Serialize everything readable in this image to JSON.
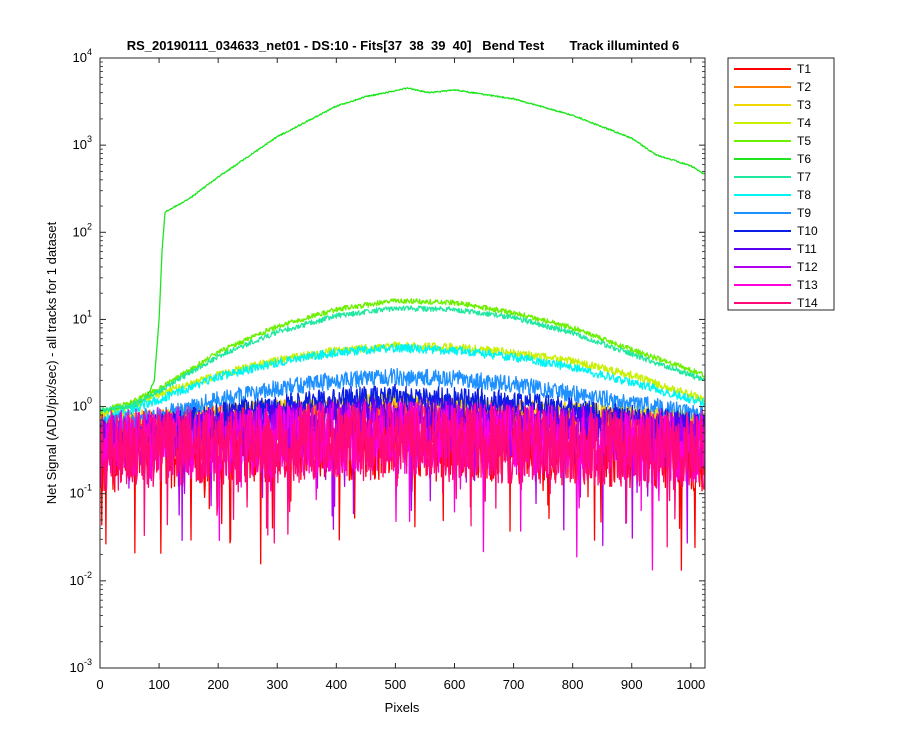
{
  "chart_data": {
    "type": "line",
    "title": "RS_20190111_034633_net01 - DS:10 - Fits[37  38  39  40]   Bend Test       Track illuminted 6",
    "xlabel": "Pixels",
    "ylabel": "Net Signal (ADU/pix/sec) - all tracks for 1 dataset",
    "xlim": [
      0,
      1024
    ],
    "ylim": [
      0.001,
      10000
    ],
    "yscale": "log",
    "x_ticks": [
      0,
      100,
      200,
      300,
      400,
      500,
      600,
      700,
      800,
      900,
      1000
    ],
    "y_tick_exponents": [
      -3,
      -2,
      -1,
      0,
      1,
      2,
      3,
      4
    ],
    "grid": false,
    "legend_position": "outside-right",
    "series": [
      {
        "name": "T1",
        "color": "#ff0000",
        "points": [
          [
            0,
            0.3
          ],
          [
            200,
            0.35
          ],
          [
            500,
            0.4
          ],
          [
            800,
            0.35
          ],
          [
            1024,
            0.3
          ]
        ]
      },
      {
        "name": "T2",
        "color": "#ff8000",
        "points": [
          [
            0,
            0.6
          ],
          [
            200,
            0.8
          ],
          [
            500,
            1.0
          ],
          [
            800,
            0.8
          ],
          [
            1024,
            0.6
          ]
        ]
      },
      {
        "name": "T3",
        "color": "#f2d600",
        "points": [
          [
            0,
            0.7
          ],
          [
            100,
            0.8
          ],
          [
            200,
            0.9
          ],
          [
            300,
            1.0
          ],
          [
            400,
            1.1
          ],
          [
            500,
            1.2
          ],
          [
            600,
            1.1
          ],
          [
            700,
            1.0
          ],
          [
            800,
            0.95
          ],
          [
            900,
            0.85
          ],
          [
            1024,
            0.75
          ]
        ]
      },
      {
        "name": "T4",
        "color": "#c8f000",
        "points": [
          [
            0,
            0.8
          ],
          [
            50,
            1.0
          ],
          [
            100,
            1.4
          ],
          [
            200,
            2.3
          ],
          [
            300,
            3.4
          ],
          [
            400,
            4.4
          ],
          [
            500,
            5.0
          ],
          [
            600,
            4.8
          ],
          [
            700,
            4.2
          ],
          [
            800,
            3.3
          ],
          [
            900,
            2.3
          ],
          [
            1024,
            1.2
          ]
        ]
      },
      {
        "name": "T5",
        "color": "#6cf000",
        "points": [
          [
            0,
            0.9
          ],
          [
            50,
            1.1
          ],
          [
            100,
            1.6
          ],
          [
            200,
            4.2
          ],
          [
            300,
            8.3
          ],
          [
            400,
            13.0
          ],
          [
            500,
            16.5
          ],
          [
            600,
            15.5
          ],
          [
            700,
            12.0
          ],
          [
            800,
            8.0
          ],
          [
            900,
            4.5
          ],
          [
            1024,
            2.3
          ]
        ]
      },
      {
        "name": "T6",
        "color": "#1ee61e",
        "points": [
          [
            0,
            0.9
          ],
          [
            60,
            1.0
          ],
          [
            80,
            1.3
          ],
          [
            92,
            2.0
          ],
          [
            100,
            10
          ],
          [
            105,
            60
          ],
          [
            110,
            170
          ],
          [
            150,
            240
          ],
          [
            200,
            430
          ],
          [
            300,
            1250
          ],
          [
            400,
            2800
          ],
          [
            450,
            3600
          ],
          [
            520,
            4500
          ],
          [
            550,
            4100
          ],
          [
            560,
            4000
          ],
          [
            600,
            4300
          ],
          [
            700,
            3400
          ],
          [
            800,
            2200
          ],
          [
            900,
            1200
          ],
          [
            940,
            780
          ],
          [
            1000,
            580
          ],
          [
            1024,
            460
          ]
        ]
      },
      {
        "name": "T7",
        "color": "#20e8a0",
        "points": [
          [
            0,
            0.9
          ],
          [
            50,
            1.0
          ],
          [
            100,
            1.5
          ],
          [
            200,
            3.8
          ],
          [
            300,
            7.2
          ],
          [
            400,
            11.0
          ],
          [
            500,
            13.5
          ],
          [
            600,
            13.0
          ],
          [
            700,
            10.5
          ],
          [
            800,
            7.0
          ],
          [
            900,
            4.0
          ],
          [
            1024,
            2.0
          ]
        ]
      },
      {
        "name": "T8",
        "color": "#00f4f4",
        "points": [
          [
            0,
            0.7
          ],
          [
            50,
            0.9
          ],
          [
            100,
            1.2
          ],
          [
            200,
            2.2
          ],
          [
            300,
            3.2
          ],
          [
            400,
            4.2
          ],
          [
            500,
            4.7
          ],
          [
            600,
            4.4
          ],
          [
            700,
            3.7
          ],
          [
            800,
            2.8
          ],
          [
            900,
            1.9
          ],
          [
            1024,
            1.1
          ]
        ]
      },
      {
        "name": "T9",
        "color": "#1e90ff",
        "points": [
          [
            0,
            0.6
          ],
          [
            100,
            0.8
          ],
          [
            200,
            1.2
          ],
          [
            300,
            1.6
          ],
          [
            400,
            2.0
          ],
          [
            500,
            2.2
          ],
          [
            600,
            2.1
          ],
          [
            700,
            1.8
          ],
          [
            800,
            1.4
          ],
          [
            900,
            1.1
          ],
          [
            1024,
            0.8
          ]
        ]
      },
      {
        "name": "T10",
        "color": "#0a1ee6",
        "points": [
          [
            0,
            0.5
          ],
          [
            100,
            0.6
          ],
          [
            200,
            0.8
          ],
          [
            300,
            1.0
          ],
          [
            400,
            1.2
          ],
          [
            500,
            1.3
          ],
          [
            600,
            1.2
          ],
          [
            700,
            1.1
          ],
          [
            800,
            0.9
          ],
          [
            900,
            0.75
          ],
          [
            1024,
            0.6
          ]
        ]
      },
      {
        "name": "T11",
        "color": "#5a00f0",
        "points": [
          [
            0,
            0.45
          ],
          [
            200,
            0.6
          ],
          [
            400,
            0.8
          ],
          [
            500,
            0.85
          ],
          [
            600,
            0.8
          ],
          [
            800,
            0.65
          ],
          [
            1024,
            0.5
          ]
        ]
      },
      {
        "name": "T12",
        "color": "#b400f0",
        "points": [
          [
            0,
            0.4
          ],
          [
            200,
            0.45
          ],
          [
            500,
            0.55
          ],
          [
            800,
            0.45
          ],
          [
            1024,
            0.4
          ]
        ]
      },
      {
        "name": "T13",
        "color": "#ff00dc",
        "points": [
          [
            0,
            0.35
          ],
          [
            200,
            0.4
          ],
          [
            500,
            0.45
          ],
          [
            800,
            0.4
          ],
          [
            1024,
            0.35
          ]
        ]
      },
      {
        "name": "T14",
        "color": "#ff0a78",
        "points": [
          [
            0,
            0.3
          ],
          [
            200,
            0.35
          ],
          [
            500,
            0.4
          ],
          [
            800,
            0.35
          ],
          [
            1024,
            0.3
          ]
        ]
      }
    ]
  }
}
